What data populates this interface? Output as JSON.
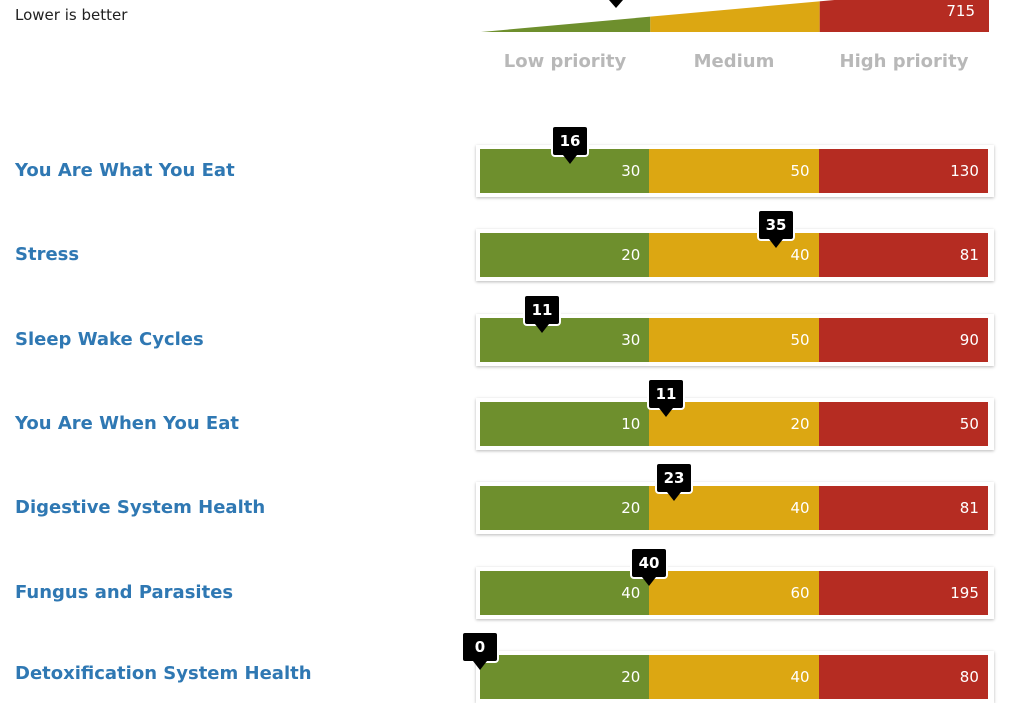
{
  "header": {
    "note": "Lower is better"
  },
  "overview_bar": {
    "segments": [
      "",
      "",
      "715"
    ],
    "colors": {
      "green": "#6e8f2d",
      "yellow": "#dca712",
      "red": "#b52c22"
    }
  },
  "legend": [
    "Low priority",
    "Medium",
    "High priority"
  ],
  "chart_data": {
    "type": "bar",
    "categories": [
      "You Are What You Eat",
      "Stress",
      "Sleep Wake Cycles",
      "You Are When You Eat",
      "Digestive System Health",
      "Fungus and Parasites",
      "Detoxification System Health"
    ],
    "rows": [
      {
        "label": "You Are What You Eat",
        "score": "16",
        "thresholds": [
          "30",
          "50",
          "130"
        ]
      },
      {
        "label": "Stress",
        "score": "35",
        "thresholds": [
          "20",
          "40",
          "81"
        ]
      },
      {
        "label": "Sleep Wake Cycles",
        "score": "11",
        "thresholds": [
          "30",
          "50",
          "90"
        ]
      },
      {
        "label": "You Are When You Eat",
        "score": "11",
        "thresholds": [
          "10",
          "20",
          "50"
        ]
      },
      {
        "label": "Digestive System Health",
        "score": "23",
        "thresholds": [
          "20",
          "40",
          "81"
        ]
      },
      {
        "label": "Fungus and Parasites",
        "score": "40",
        "thresholds": [
          "40",
          "60",
          "195"
        ]
      },
      {
        "label": "Detoxification System Health",
        "score": "0",
        "thresholds": [
          "20",
          "40",
          "80"
        ]
      }
    ]
  }
}
